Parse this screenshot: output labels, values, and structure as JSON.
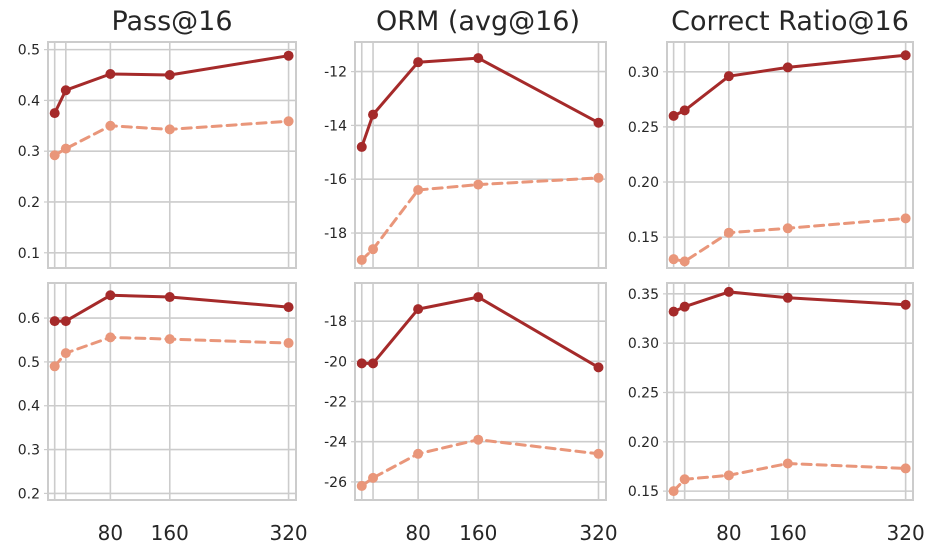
{
  "colors": {
    "series_solid": "#a52a2a",
    "series_dashed": "#e9967a",
    "grid": "#cccccc",
    "frame": "#cccccc"
  },
  "columns": [
    {
      "title": "Pass@16"
    },
    {
      "title": "ORM (avg@16)"
    },
    {
      "title": "Correct Ratio@16"
    }
  ],
  "chart_data": [
    {
      "type": "line",
      "row": 1,
      "col": 1,
      "x": [
        5,
        20,
        80,
        160,
        320
      ],
      "xlim": [
        -4,
        330
      ],
      "ylim": [
        0.07,
        0.515
      ],
      "yticks": [
        "0.1",
        "0.2",
        "0.3",
        "0.4",
        "0.5"
      ],
      "xticks": [
        "80",
        "160",
        "320"
      ],
      "series": [
        {
          "style": "solid",
          "values": [
            0.375,
            0.42,
            0.452,
            0.45,
            0.488
          ]
        },
        {
          "style": "dashed",
          "values": [
            0.292,
            0.305,
            0.35,
            0.343,
            0.359
          ]
        }
      ]
    },
    {
      "type": "line",
      "row": 1,
      "col": 2,
      "x": [
        5,
        20,
        80,
        160,
        320
      ],
      "xlim": [
        -4,
        330
      ],
      "ylim": [
        -19.3,
        -10.9
      ],
      "yticks": [
        "-18",
        "-16",
        "-14",
        "-12"
      ],
      "xticks": [
        "80",
        "160",
        "320"
      ],
      "series": [
        {
          "style": "solid",
          "values": [
            -14.8,
            -13.6,
            -11.65,
            -11.5,
            -13.9
          ]
        },
        {
          "style": "dashed",
          "values": [
            -19.0,
            -18.6,
            -16.4,
            -16.2,
            -15.95
          ]
        }
      ]
    },
    {
      "type": "line",
      "row": 1,
      "col": 3,
      "x": [
        5,
        20,
        80,
        160,
        320
      ],
      "xlim": [
        -4,
        330
      ],
      "ylim": [
        0.122,
        0.327
      ],
      "yticks": [
        "0.15",
        "0.20",
        "0.25",
        "0.30"
      ],
      "xticks": [
        "80",
        "160",
        "320"
      ],
      "series": [
        {
          "style": "solid",
          "values": [
            0.26,
            0.265,
            0.296,
            0.304,
            0.315
          ]
        },
        {
          "style": "dashed",
          "values": [
            0.13,
            0.128,
            0.154,
            0.158,
            0.167
          ]
        }
      ]
    },
    {
      "type": "line",
      "row": 2,
      "col": 1,
      "x": [
        5,
        20,
        80,
        160,
        320
      ],
      "xlim": [
        -4,
        330
      ],
      "ylim": [
        0.185,
        0.68
      ],
      "yticks": [
        "0.2",
        "0.3",
        "0.4",
        "0.5",
        "0.6"
      ],
      "xticks": [
        "80",
        "160",
        "320"
      ],
      "series": [
        {
          "style": "solid",
          "values": [
            0.593,
            0.593,
            0.652,
            0.648,
            0.625
          ]
        },
        {
          "style": "dashed",
          "values": [
            0.49,
            0.52,
            0.556,
            0.552,
            0.543
          ]
        }
      ]
    },
    {
      "type": "line",
      "row": 2,
      "col": 2,
      "x": [
        5,
        20,
        80,
        160,
        320
      ],
      "xlim": [
        -4,
        330
      ],
      "ylim": [
        -26.9,
        -16.1
      ],
      "yticks": [
        "-26",
        "-24",
        "-22",
        "-20",
        "-18"
      ],
      "xticks": [
        "80",
        "160",
        "320"
      ],
      "series": [
        {
          "style": "solid",
          "values": [
            -20.1,
            -20.1,
            -17.4,
            -16.8,
            -20.3
          ]
        },
        {
          "style": "dashed",
          "values": [
            -26.2,
            -25.8,
            -24.6,
            -23.9,
            -24.6
          ]
        }
      ]
    },
    {
      "type": "line",
      "row": 2,
      "col": 3,
      "x": [
        5,
        20,
        80,
        160,
        320
      ],
      "xlim": [
        -4,
        330
      ],
      "ylim": [
        0.141,
        0.361
      ],
      "yticks": [
        "0.15",
        "0.20",
        "0.25",
        "0.30",
        "0.35"
      ],
      "xticks": [
        "80",
        "160",
        "320"
      ],
      "series": [
        {
          "style": "solid",
          "values": [
            0.332,
            0.337,
            0.352,
            0.346,
            0.339
          ]
        },
        {
          "style": "dashed",
          "values": [
            0.15,
            0.162,
            0.166,
            0.178,
            0.173
          ]
        }
      ]
    }
  ]
}
